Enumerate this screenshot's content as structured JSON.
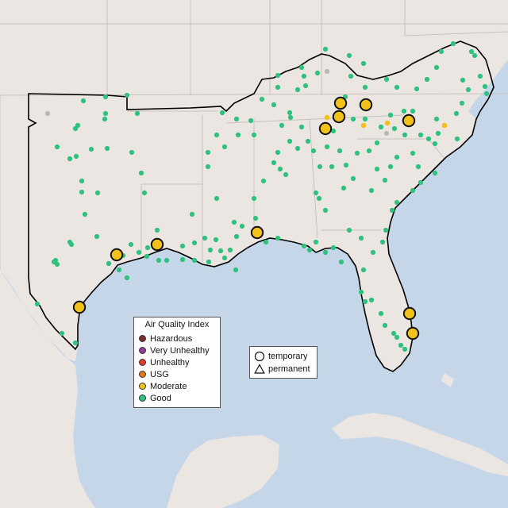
{
  "legend": {
    "title": "Air Quality Index",
    "categories": [
      {
        "label": "Hazardous",
        "color": "#7e2a2a"
      },
      {
        "label": "Very Unhealthy",
        "color": "#8f3f97"
      },
      {
        "label": "Unhealthy",
        "color": "#e33a2c"
      },
      {
        "label": "USG",
        "color": "#e07b1a"
      },
      {
        "label": "Moderate",
        "color": "#f2c21b"
      },
      {
        "label": "Good",
        "color": "#2ec27e"
      }
    ]
  },
  "shape_legend": {
    "temporary": "temporary",
    "permanent": "permanent"
  },
  "colors": {
    "ocean": "#c5d6e8",
    "land": "#ece6e2",
    "state_border": "#c8c2bd",
    "region_border": "#000000",
    "no_data": "#b9b9b9"
  }
}
